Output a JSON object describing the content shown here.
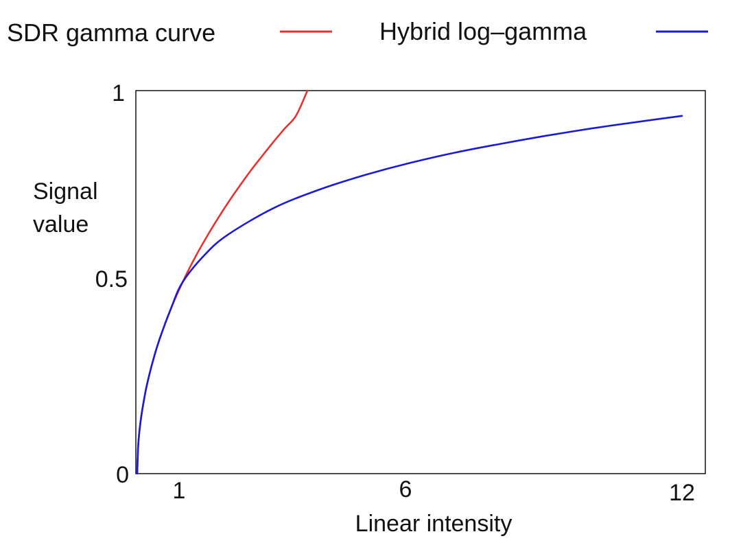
{
  "chart_data": {
    "type": "line",
    "xlabel": "Linear intensity",
    "ylabel": [
      "Signal",
      "value"
    ],
    "xlim": [
      0,
      12
    ],
    "ylim": [
      0,
      1
    ],
    "x_ticks": [
      {
        "value": 1,
        "label": "1"
      },
      {
        "value": 6,
        "label": "6"
      },
      {
        "value": 12,
        "label": "12"
      }
    ],
    "y_ticks": [
      {
        "value": 0,
        "label": "0"
      },
      {
        "value": 0.5,
        "label": "0.5"
      },
      {
        "value": 1,
        "label": "1"
      }
    ],
    "grid": false,
    "legend_position": "top",
    "series": [
      {
        "name": "SDR gamma curve",
        "color": "#e8312b",
        "x": [
          0,
          0.02,
          0.05,
          0.1,
          0.2,
          0.35,
          0.5,
          0.75,
          1,
          1.25,
          1.5,
          1.75,
          2,
          2.25,
          2.5,
          2.75,
          3,
          3.25,
          3.5,
          3.75
        ],
        "y": [
          0,
          0.07,
          0.112,
          0.158,
          0.224,
          0.296,
          0.354,
          0.433,
          0.5,
          0.559,
          0.612,
          0.661,
          0.707,
          0.75,
          0.791,
          0.829,
          0.866,
          0.901,
          0.935,
          1.0
        ]
      },
      {
        "name": "Hybrid log–gamma",
        "color": "#1a1adc",
        "x": [
          0,
          0.02,
          0.05,
          0.1,
          0.2,
          0.35,
          0.5,
          0.75,
          1,
          1.5,
          2,
          3,
          4,
          5,
          6,
          7,
          8,
          9,
          10,
          11,
          12
        ],
        "y": [
          0,
          0.07,
          0.112,
          0.158,
          0.224,
          0.296,
          0.354,
          0.433,
          0.5,
          0.573,
          0.624,
          0.693,
          0.741,
          0.779,
          0.811,
          0.838,
          0.861,
          0.882,
          0.901,
          0.918,
          0.934
        ]
      }
    ]
  }
}
